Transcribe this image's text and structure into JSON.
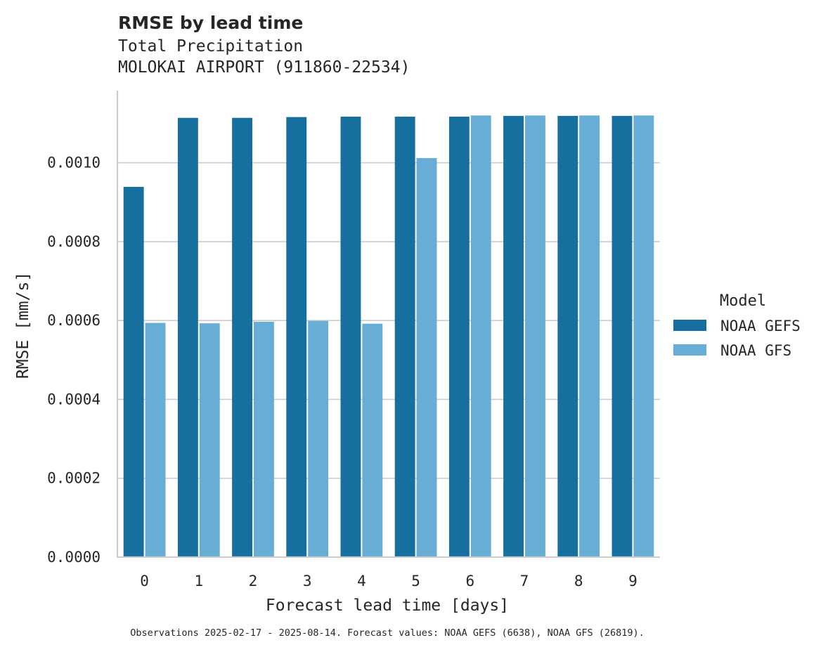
{
  "title": "RMSE by lead time",
  "subtitle_lines": [
    "Total Precipitation",
    "MOLOKAI AIRPORT (911860-22534)"
  ],
  "footnote": "Observations 2025-02-17 - 2025-08-14. Forecast values: NOAA GEFS (6638), NOAA GFS (26819).",
  "colors": {
    "NOAA GEFS": "#176f9f",
    "NOAA GFS": "#67add6",
    "grid": "#cccccc",
    "text": "#262626"
  },
  "chart_data": {
    "type": "bar",
    "title": "RMSE by lead time",
    "xlabel": "Forecast lead time [days]",
    "ylabel": "RMSE [mm/s]",
    "categories": [
      "0",
      "1",
      "2",
      "3",
      "4",
      "5",
      "6",
      "7",
      "8",
      "9"
    ],
    "series": [
      {
        "name": "NOAA GEFS",
        "values": [
          0.000939,
          0.001114,
          0.001114,
          0.001116,
          0.001117,
          0.001117,
          0.001117,
          0.001119,
          0.001119,
          0.001119
        ]
      },
      {
        "name": "NOAA GFS",
        "values": [
          0.000594,
          0.000593,
          0.000597,
          0.000599,
          0.000592,
          0.001012,
          0.00112,
          0.00112,
          0.00112,
          0.00112
        ]
      }
    ],
    "ylim": [
      0,
      0.001183
    ],
    "yticks": [
      0.0,
      0.0002,
      0.0004,
      0.0006,
      0.0008,
      0.001
    ],
    "ytick_labels": [
      "0.0000",
      "0.0002",
      "0.0004",
      "0.0006",
      "0.0008",
      "0.0010"
    ],
    "grid": true,
    "legend": {
      "title": "Model",
      "position": "right",
      "entries": [
        "NOAA GEFS",
        "NOAA GFS"
      ]
    }
  }
}
